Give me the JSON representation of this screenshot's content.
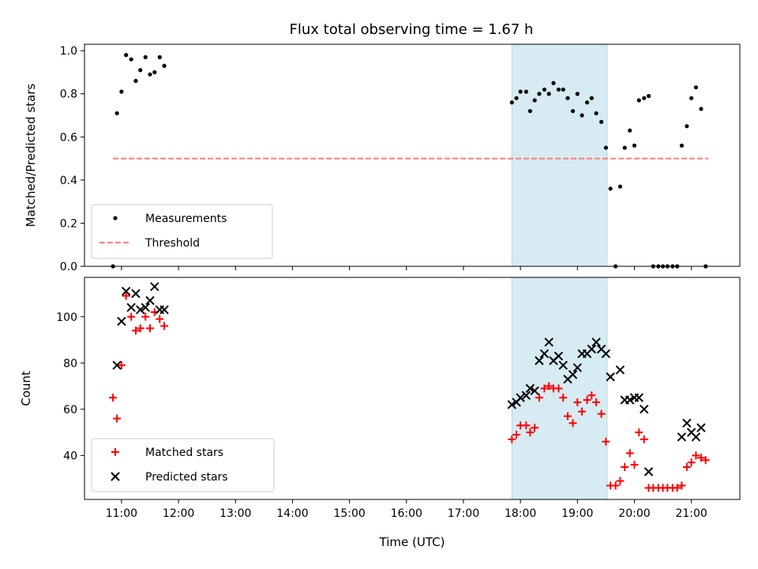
{
  "chart_data": {
    "type": "scatter",
    "title": "Flux total observing time = 1.67 h",
    "xlabel": "Time (UTC)",
    "x_ticks": [
      "11:00",
      "12:00",
      "13:00",
      "14:00",
      "15:00",
      "16:00",
      "17:00",
      "18:00",
      "19:00",
      "20:00",
      "21:00"
    ],
    "x_range_hours": [
      10.35,
      21.85
    ],
    "highlight_span_hours": [
      17.85,
      19.52
    ],
    "top_panel": {
      "ylabel": "Matched/Predicted stars",
      "ylim": [
        0,
        1.03
      ],
      "y_ticks": [
        "0.0",
        "0.2",
        "0.4",
        "0.6",
        "0.8",
        "1.0"
      ],
      "legend": {
        "position": "lower-left",
        "entries": [
          "Measurements",
          "Threshold"
        ]
      },
      "threshold": {
        "name": "Threshold",
        "value": 0.5,
        "x_start": 10.85,
        "x_end": 21.3,
        "color": "#ff7a7a"
      },
      "measurements": {
        "name": "Measurements",
        "x": [
          10.85,
          10.92,
          11.0,
          11.08,
          11.17,
          11.25,
          11.33,
          11.42,
          11.5,
          11.58,
          11.67,
          11.75,
          17.85,
          17.93,
          18.0,
          18.1,
          18.17,
          18.25,
          18.33,
          18.42,
          18.5,
          18.58,
          18.67,
          18.75,
          18.83,
          18.92,
          19.0,
          19.08,
          19.17,
          19.25,
          19.33,
          19.42,
          19.5,
          19.58,
          19.67,
          19.75,
          19.83,
          19.92,
          20.0,
          20.08,
          20.17,
          20.25,
          20.33,
          20.42,
          20.5,
          20.58,
          20.67,
          20.75,
          20.83,
          20.92,
          21.0,
          21.08,
          21.17,
          21.25
        ],
        "y": [
          0.0,
          0.71,
          0.81,
          0.98,
          0.96,
          0.86,
          0.91,
          0.97,
          0.89,
          0.9,
          0.97,
          0.93,
          0.76,
          0.78,
          0.81,
          0.81,
          0.72,
          0.77,
          0.8,
          0.82,
          0.8,
          0.85,
          0.82,
          0.82,
          0.78,
          0.72,
          0.8,
          0.7,
          0.76,
          0.78,
          0.71,
          0.67,
          0.55,
          0.36,
          0.0,
          0.37,
          0.55,
          0.63,
          0.56,
          0.77,
          0.78,
          0.79,
          0.0,
          0.0,
          0.0,
          0.0,
          0.0,
          0.0,
          0.56,
          0.65,
          0.78,
          0.83,
          0.73,
          0.0
        ],
        "color": "#000000"
      }
    },
    "bottom_panel": {
      "ylabel": "Count",
      "ylim": [
        21,
        117
      ],
      "y_ticks": [
        "40",
        "60",
        "80",
        "100"
      ],
      "legend": {
        "position": "lower-left",
        "entries": [
          "Matched stars",
          "Predicted stars"
        ]
      },
      "matched": {
        "name": "Matched stars",
        "x": [
          10.85,
          10.92,
          11.0,
          11.08,
          11.17,
          11.25,
          11.33,
          11.42,
          11.5,
          11.58,
          11.67,
          11.75,
          17.85,
          17.93,
          18.0,
          18.1,
          18.17,
          18.25,
          18.33,
          18.42,
          18.5,
          18.58,
          18.67,
          18.75,
          18.83,
          18.92,
          19.0,
          19.08,
          19.17,
          19.25,
          19.33,
          19.42,
          19.5,
          19.58,
          19.67,
          19.75,
          19.83,
          19.92,
          20.0,
          20.08,
          20.17,
          20.25,
          20.33,
          20.42,
          20.5,
          20.58,
          20.67,
          20.75,
          20.83,
          20.92,
          21.0,
          21.08,
          21.17,
          21.25
        ],
        "y": [
          65,
          56,
          79,
          109,
          100,
          94,
          95,
          100,
          95,
          102,
          99,
          96,
          47,
          49,
          53,
          53,
          50,
          52,
          65,
          69,
          70,
          69,
          69,
          65,
          57,
          54,
          63,
          59,
          64,
          66,
          63,
          58,
          46,
          27,
          27,
          29,
          35,
          41,
          36,
          50,
          47,
          26,
          26,
          26,
          26,
          26,
          26,
          26,
          27,
          35,
          37,
          40,
          39,
          38
        ],
        "color": "#ff0000"
      },
      "predicted": {
        "name": "Predicted stars",
        "x": [
          10.92,
          11.0,
          11.08,
          11.17,
          11.25,
          11.33,
          11.42,
          11.5,
          11.58,
          11.67,
          11.75,
          17.85,
          17.93,
          18.0,
          18.1,
          18.17,
          18.25,
          18.33,
          18.42,
          18.5,
          18.58,
          18.67,
          18.75,
          18.83,
          18.92,
          19.0,
          19.08,
          19.17,
          19.25,
          19.33,
          19.42,
          19.5,
          19.58,
          19.75,
          19.83,
          19.92,
          20.0,
          20.08,
          20.17,
          20.25,
          20.83,
          20.92,
          21.0,
          21.08,
          21.17
        ],
        "y": [
          79,
          98,
          111,
          104,
          110,
          103,
          104,
          107,
          113,
          103,
          103,
          62,
          63,
          65,
          66,
          69,
          68,
          81,
          84,
          89,
          81,
          83,
          79,
          73,
          75,
          78,
          84,
          84,
          86,
          89,
          86,
          84,
          74,
          77,
          64,
          64,
          65,
          65,
          60,
          33,
          48,
          54,
          50,
          48,
          52
        ],
        "color": "#000000"
      }
    }
  }
}
